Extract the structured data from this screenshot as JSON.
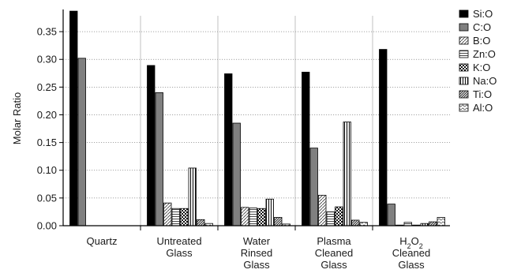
{
  "chart_data": {
    "type": "bar",
    "ylabel": "Molar Ratio",
    "xlabel": "",
    "ylim": [
      0,
      0.39
    ],
    "yticks": [
      "0.00",
      "0.05",
      "0.10",
      "0.15",
      "0.20",
      "0.25",
      "0.30",
      "0.35"
    ],
    "grid": "horizontal-dotted",
    "legend_position": "right",
    "categories": [
      "Quartz",
      "Untreated Glass",
      "Water Rinsed Glass",
      "Plasma Cleaned Glass",
      "H2O2 Cleaned Glass"
    ],
    "category_label_lines": [
      [
        "Quartz"
      ],
      [
        "Untreated",
        "Glass"
      ],
      [
        "Water",
        "Rinsed",
        "Glass"
      ],
      [
        "Plasma",
        "Cleaned",
        "Glass"
      ],
      [
        "H2O2",
        "Cleaned",
        "Glass"
      ]
    ],
    "series": [
      {
        "name": "Si:O",
        "pattern": "solid-black",
        "values": [
          0.387,
          0.289,
          0.274,
          0.277,
          0.318
        ]
      },
      {
        "name": "C:O",
        "pattern": "solid-gray",
        "values": [
          0.302,
          0.24,
          0.185,
          0.14,
          0.039
        ]
      },
      {
        "name": "B:O",
        "pattern": "diagonal",
        "values": [
          null,
          0.041,
          0.033,
          0.055,
          0.001
        ]
      },
      {
        "name": "Zn:O",
        "pattern": "horizontal",
        "values": [
          null,
          0.031,
          0.032,
          0.025,
          0.006
        ]
      },
      {
        "name": "K:O",
        "pattern": "checker",
        "values": [
          null,
          0.031,
          0.031,
          0.034,
          0.001
        ]
      },
      {
        "name": "Na:O",
        "pattern": "vertical",
        "values": [
          null,
          0.104,
          0.048,
          0.187,
          0.004
        ]
      },
      {
        "name": "Ti:O",
        "pattern": "dense-diagonal",
        "values": [
          null,
          0.011,
          0.015,
          0.01,
          0.007
        ]
      },
      {
        "name": "Al:O",
        "pattern": "wave",
        "values": [
          null,
          0.004,
          0.003,
          0.006,
          0.015
        ]
      }
    ]
  }
}
